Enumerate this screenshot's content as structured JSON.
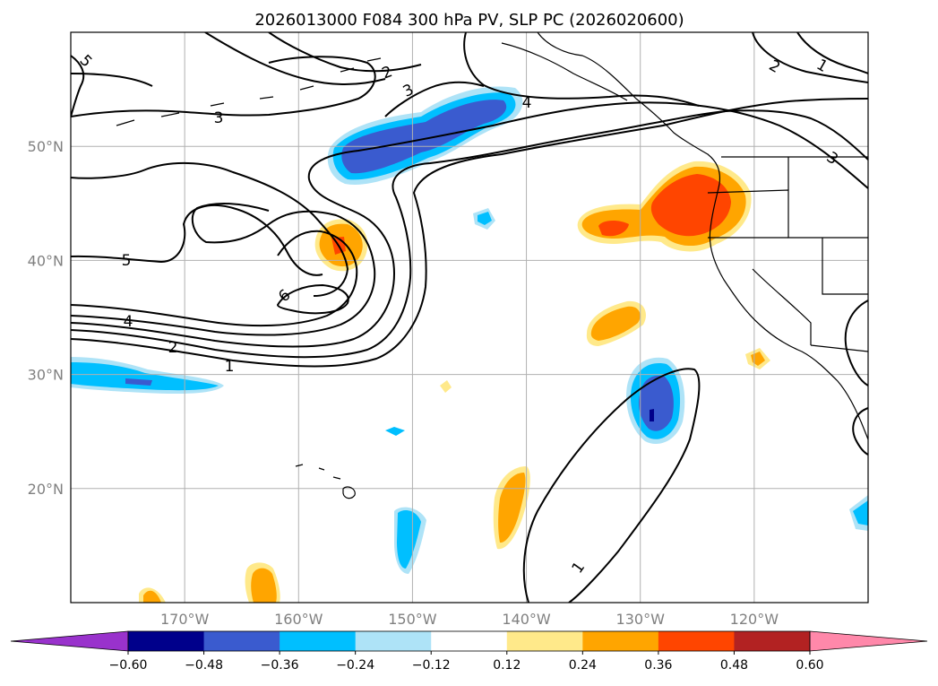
{
  "chart_data": {
    "type": "contour_map",
    "title": "2026013000 F084 300 hPa PV, SLP PC (2026020600)",
    "projection": "lat-lon",
    "lon_range": [
      -180,
      -110
    ],
    "lat_range": [
      10,
      60
    ],
    "lat_ticks": [
      {
        "value": 20,
        "label": "20°N"
      },
      {
        "value": 30,
        "label": "30°N"
      },
      {
        "value": 40,
        "label": "40°N"
      },
      {
        "value": 50,
        "label": "50°N"
      }
    ],
    "lon_ticks": [
      {
        "value": -170,
        "label": "170°W"
      },
      {
        "value": -160,
        "label": "160°W"
      },
      {
        "value": -150,
        "label": "150°W"
      },
      {
        "value": -140,
        "label": "140°W"
      },
      {
        "value": -130,
        "label": "130°W"
      },
      {
        "value": -120,
        "label": "120°W"
      }
    ],
    "grid": true,
    "colorbar": {
      "orientation": "horizontal",
      "extend": "both",
      "levels": [
        -0.6,
        -0.48,
        -0.36,
        -0.24,
        -0.12,
        0.12,
        0.24,
        0.36,
        0.48,
        0.6
      ],
      "tick_labels": [
        "−0.60",
        "−0.48",
        "−0.36",
        "−0.24",
        "−0.12",
        "0.12",
        "0.24",
        "0.36",
        "0.48",
        "0.60"
      ],
      "colors": [
        "#9932cc",
        "#00008b",
        "#3a5bcf",
        "#00bfff",
        "#aee3f7",
        "#ffffff",
        "#ffe98a",
        "#ffa500",
        "#ff4500",
        "#b22222",
        "#ff88aa"
      ]
    },
    "contour_labels": [
      "5",
      "3",
      "2",
      "3",
      "4",
      "5",
      "4",
      "2",
      "1",
      "6",
      "2",
      "1",
      "3",
      "1"
    ],
    "shaded_features": [
      {
        "name": "negative PV anomaly NE Pacific",
        "lon": -149,
        "lat": 51,
        "max_class": "-0.36"
      },
      {
        "name": "positive PV anomaly off California",
        "lon": -127,
        "lat": 44,
        "max_class": "0.36"
      },
      {
        "name": "negative PV anomaly subtropical",
        "lon": -129,
        "lat": 27,
        "max_class": "-0.48"
      },
      {
        "name": "negative PV anomaly west",
        "lon": -175,
        "lat": 30,
        "max_class": "-0.36"
      }
    ]
  }
}
